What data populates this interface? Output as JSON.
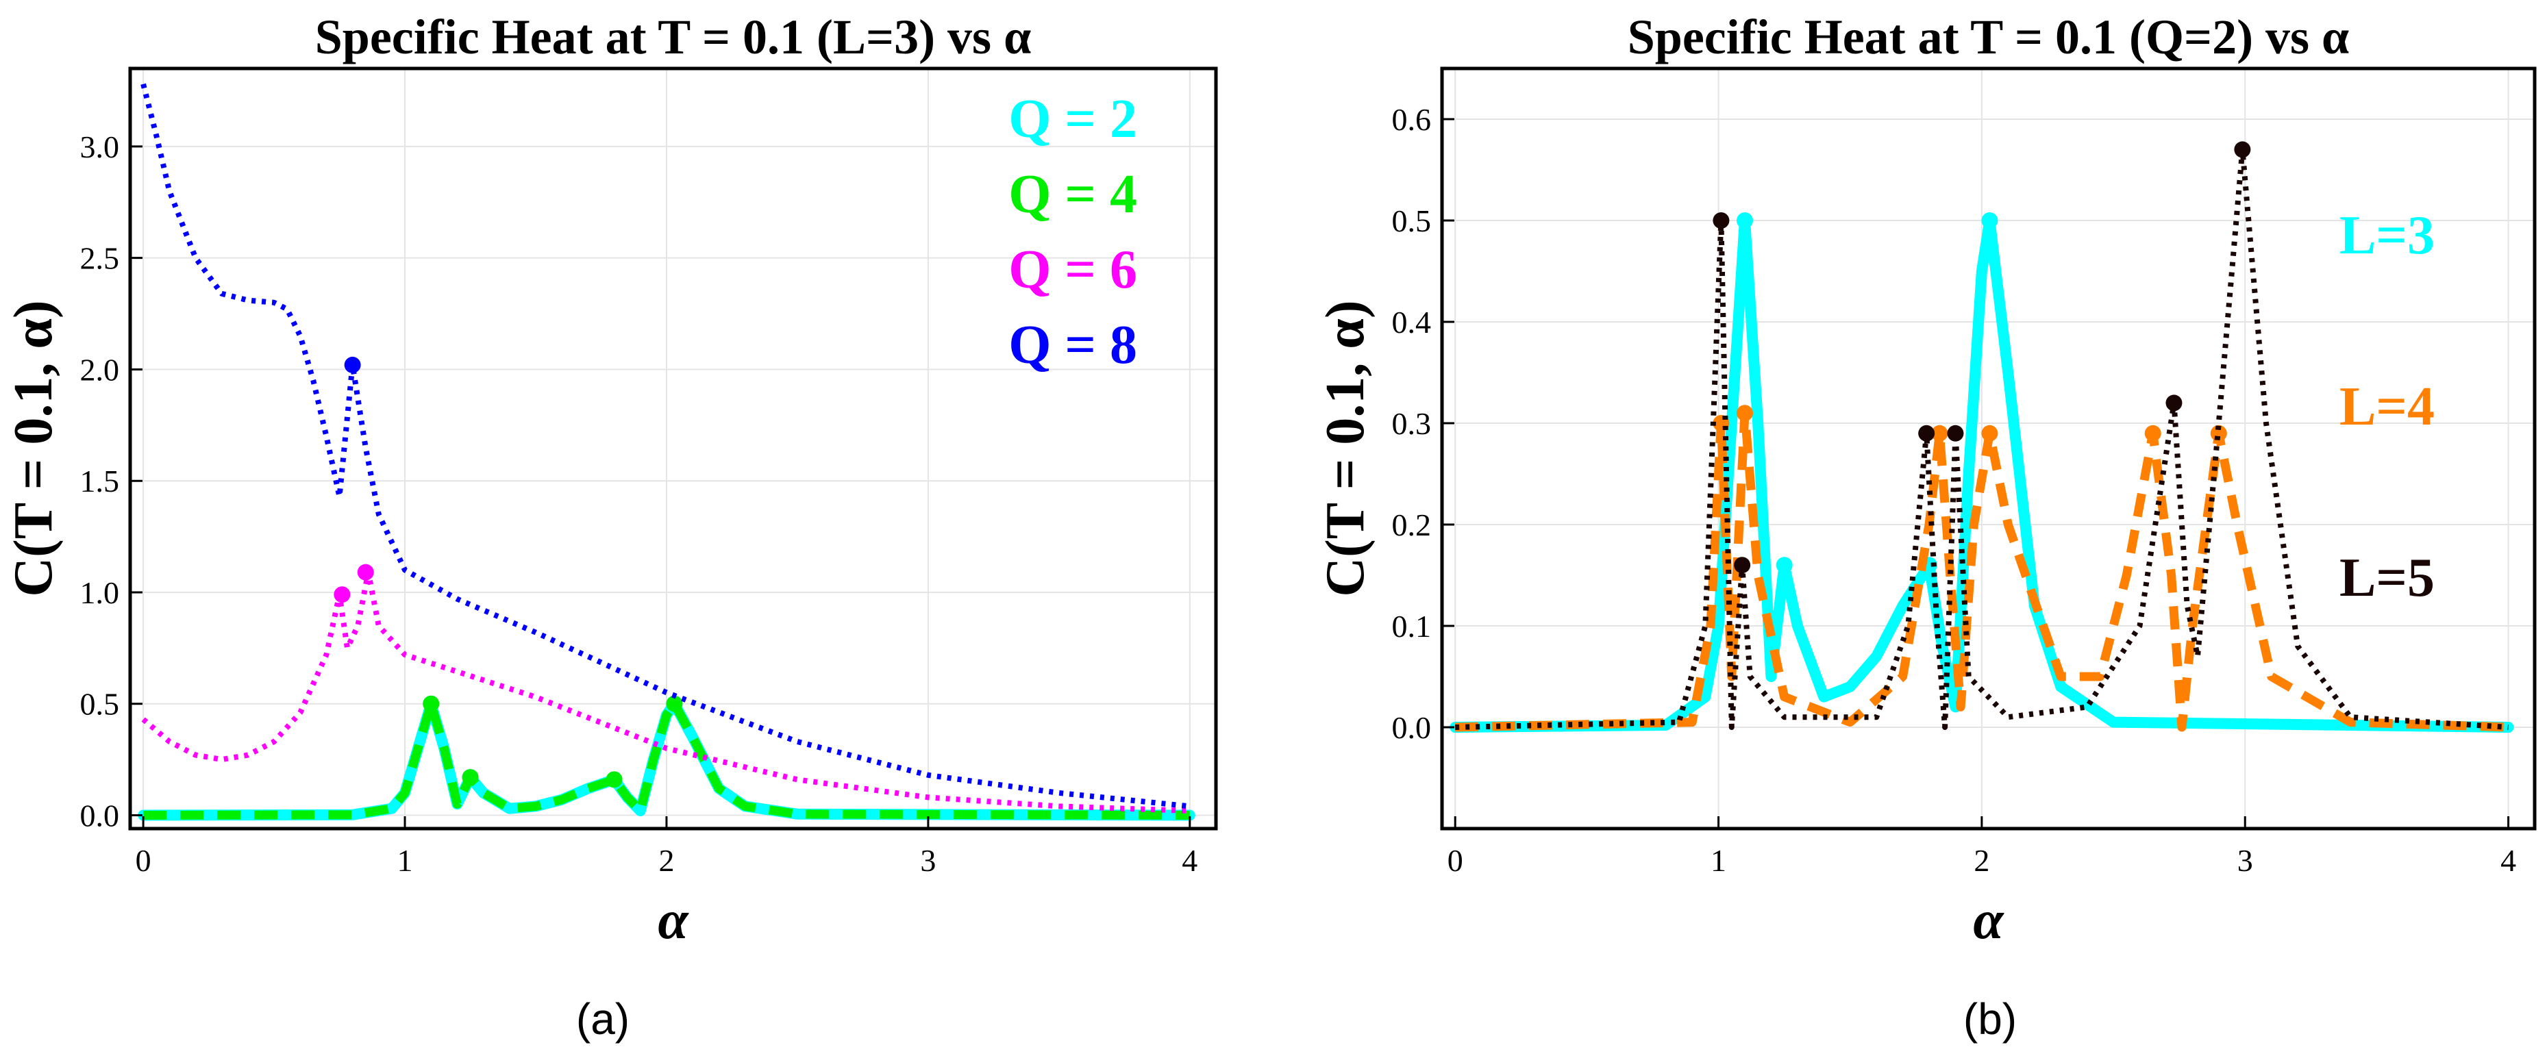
{
  "chart_data": [
    {
      "type": "line",
      "caption": "(a)",
      "title": "Specific Heat at T = 0.1 (L=3) vs α",
      "xlabel": "α",
      "ylabel": "C(T = 0.1, α)",
      "xlim": [
        -0.05,
        4.1
      ],
      "ylim": [
        -0.06,
        3.35
      ],
      "xticks": [
        {
          "v": 0,
          "label": "0"
        },
        {
          "v": 1,
          "label": "1"
        },
        {
          "v": 2,
          "label": "2"
        },
        {
          "v": 3,
          "label": "3"
        },
        {
          "v": 4,
          "label": "4"
        }
      ],
      "yticks": [
        {
          "v": 0.0,
          "label": "0.0"
        },
        {
          "v": 0.5,
          "label": "0.5"
        },
        {
          "v": 1.0,
          "label": "1.0"
        },
        {
          "v": 1.5,
          "label": "1.5"
        },
        {
          "v": 2.0,
          "label": "2.0"
        },
        {
          "v": 2.5,
          "label": "2.5"
        },
        {
          "v": 3.0,
          "label": "3.0"
        }
      ],
      "grid": true,
      "legend_position": "top-right",
      "series": [
        {
          "name": "Q = 2",
          "color": "#00ffff",
          "style": "solid",
          "points": [
            [
              0,
              0.0
            ],
            [
              0.8,
              0.002
            ],
            [
              0.95,
              0.03
            ],
            [
              1.0,
              0.1
            ],
            [
              1.05,
              0.3
            ],
            [
              1.1,
              0.5
            ],
            [
              1.15,
              0.3
            ],
            [
              1.2,
              0.05
            ],
            [
              1.25,
              0.17
            ],
            [
              1.3,
              0.1
            ],
            [
              1.4,
              0.03
            ],
            [
              1.5,
              0.04
            ],
            [
              1.6,
              0.07
            ],
            [
              1.7,
              0.12
            ],
            [
              1.8,
              0.16
            ],
            [
              1.85,
              0.08
            ],
            [
              1.9,
              0.02
            ],
            [
              1.95,
              0.25
            ],
            [
              2.0,
              0.45
            ],
            [
              2.03,
              0.5
            ],
            [
              2.1,
              0.35
            ],
            [
              2.2,
              0.12
            ],
            [
              2.3,
              0.04
            ],
            [
              2.5,
              0.005
            ],
            [
              4.0,
              0.0
            ]
          ],
          "markers": [
            [
              1.1,
              0.5
            ],
            [
              1.25,
              0.17
            ],
            [
              1.8,
              0.16
            ],
            [
              2.03,
              0.5
            ]
          ]
        },
        {
          "name": "Q = 4",
          "color": "#00ee00",
          "style": "dashed",
          "points": [
            [
              0,
              0.0
            ],
            [
              0.8,
              0.002
            ],
            [
              0.95,
              0.03
            ],
            [
              1.0,
              0.1
            ],
            [
              1.05,
              0.3
            ],
            [
              1.1,
              0.5
            ],
            [
              1.15,
              0.3
            ],
            [
              1.2,
              0.05
            ],
            [
              1.25,
              0.17
            ],
            [
              1.3,
              0.1
            ],
            [
              1.4,
              0.03
            ],
            [
              1.5,
              0.04
            ],
            [
              1.6,
              0.07
            ],
            [
              1.7,
              0.12
            ],
            [
              1.8,
              0.16
            ],
            [
              1.85,
              0.08
            ],
            [
              1.9,
              0.02
            ],
            [
              1.95,
              0.25
            ],
            [
              2.0,
              0.45
            ],
            [
              2.03,
              0.5
            ],
            [
              2.1,
              0.35
            ],
            [
              2.2,
              0.12
            ],
            [
              2.3,
              0.04
            ],
            [
              2.5,
              0.005
            ],
            [
              4.0,
              0.0
            ]
          ],
          "markers": [
            [
              1.1,
              0.5
            ],
            [
              1.25,
              0.17
            ],
            [
              1.8,
              0.16
            ],
            [
              2.03,
              0.5
            ]
          ]
        },
        {
          "name": "Q = 6",
          "color": "#ff00ff",
          "style": "dotted",
          "points": [
            [
              0,
              0.43
            ],
            [
              0.1,
              0.33
            ],
            [
              0.2,
              0.27
            ],
            [
              0.3,
              0.25
            ],
            [
              0.4,
              0.27
            ],
            [
              0.5,
              0.33
            ],
            [
              0.6,
              0.46
            ],
            [
              0.7,
              0.72
            ],
            [
              0.75,
              0.99
            ],
            [
              0.78,
              0.75
            ],
            [
              0.82,
              0.85
            ],
            [
              0.86,
              1.09
            ],
            [
              0.9,
              0.85
            ],
            [
              1.0,
              0.72
            ],
            [
              1.5,
              0.53
            ],
            [
              2.0,
              0.3
            ],
            [
              2.5,
              0.16
            ],
            [
              3.0,
              0.08
            ],
            [
              3.5,
              0.04
            ],
            [
              4.0,
              0.02
            ]
          ],
          "markers": [
            [
              0.76,
              0.99
            ],
            [
              0.85,
              1.09
            ]
          ]
        },
        {
          "name": "Q = 8",
          "color": "#0000ff",
          "style": "dotted",
          "points": [
            [
              0,
              3.28
            ],
            [
              0.05,
              3.05
            ],
            [
              0.1,
              2.8
            ],
            [
              0.2,
              2.5
            ],
            [
              0.3,
              2.34
            ],
            [
              0.4,
              2.31
            ],
            [
              0.5,
              2.3
            ],
            [
              0.55,
              2.27
            ],
            [
              0.6,
              2.15
            ],
            [
              0.65,
              1.95
            ],
            [
              0.7,
              1.7
            ],
            [
              0.75,
              1.43
            ],
            [
              0.8,
              2.02
            ],
            [
              0.85,
              1.65
            ],
            [
              0.9,
              1.35
            ],
            [
              1.0,
              1.1
            ],
            [
              1.2,
              0.97
            ],
            [
              1.5,
              0.82
            ],
            [
              2.0,
              0.55
            ],
            [
              2.5,
              0.33
            ],
            [
              3.0,
              0.18
            ],
            [
              3.5,
              0.1
            ],
            [
              4.0,
              0.04
            ]
          ],
          "markers": [
            [
              0.8,
              2.02
            ]
          ]
        }
      ]
    },
    {
      "type": "line",
      "caption": "(b)",
      "title": "Specific Heat at T = 0.1 (Q=2) vs α",
      "xlabel": "α",
      "ylabel": "C(T = 0.1, α)",
      "xlim": [
        -0.05,
        4.1
      ],
      "ylim": [
        -0.1,
        0.65
      ],
      "xticks": [
        {
          "v": 0,
          "label": "0"
        },
        {
          "v": 1,
          "label": "1"
        },
        {
          "v": 2,
          "label": "2"
        },
        {
          "v": 3,
          "label": "3"
        },
        {
          "v": 4,
          "label": "4"
        }
      ],
      "yticks": [
        {
          "v": 0.0,
          "label": "0.0"
        },
        {
          "v": 0.1,
          "label": "0.1"
        },
        {
          "v": 0.2,
          "label": "0.2"
        },
        {
          "v": 0.3,
          "label": "0.3"
        },
        {
          "v": 0.4,
          "label": "0.4"
        },
        {
          "v": 0.5,
          "label": "0.5"
        },
        {
          "v": 0.6,
          "label": "0.6"
        }
      ],
      "grid": true,
      "legend_position": "right",
      "series": [
        {
          "name": "L=3",
          "color": "#00ffff",
          "style": "solid",
          "points": [
            [
              0,
              0.0
            ],
            [
              0.8,
              0.002
            ],
            [
              0.95,
              0.03
            ],
            [
              1.0,
              0.1
            ],
            [
              1.05,
              0.3
            ],
            [
              1.1,
              0.5
            ],
            [
              1.15,
              0.3
            ],
            [
              1.2,
              0.05
            ],
            [
              1.25,
              0.16
            ],
            [
              1.3,
              0.1
            ],
            [
              1.4,
              0.03
            ],
            [
              1.5,
              0.04
            ],
            [
              1.6,
              0.07
            ],
            [
              1.7,
              0.12
            ],
            [
              1.8,
              0.16
            ],
            [
              1.85,
              0.08
            ],
            [
              1.9,
              0.02
            ],
            [
              1.95,
              0.25
            ],
            [
              2.0,
              0.45
            ],
            [
              2.03,
              0.5
            ],
            [
              2.1,
              0.35
            ],
            [
              2.2,
              0.12
            ],
            [
              2.3,
              0.04
            ],
            [
              2.5,
              0.005
            ],
            [
              4.0,
              0.0
            ]
          ],
          "markers": [
            [
              1.1,
              0.5
            ],
            [
              1.25,
              0.16
            ],
            [
              1.8,
              0.16
            ],
            [
              2.03,
              0.5
            ]
          ]
        },
        {
          "name": "L=4",
          "color": "#ff8000",
          "style": "dashed",
          "points": [
            [
              0,
              0.0
            ],
            [
              0.9,
              0.005
            ],
            [
              0.97,
              0.1
            ],
            [
              1.01,
              0.3
            ],
            [
              1.05,
              0.05
            ],
            [
              1.1,
              0.31
            ],
            [
              1.15,
              0.15
            ],
            [
              1.25,
              0.03
            ],
            [
              1.5,
              0.005
            ],
            [
              1.7,
              0.05
            ],
            [
              1.8,
              0.2
            ],
            [
              1.84,
              0.29
            ],
            [
              1.88,
              0.15
            ],
            [
              1.92,
              0.02
            ],
            [
              1.97,
              0.2
            ],
            [
              2.03,
              0.29
            ],
            [
              2.1,
              0.2
            ],
            [
              2.3,
              0.05
            ],
            [
              2.45,
              0.05
            ],
            [
              2.55,
              0.15
            ],
            [
              2.65,
              0.29
            ],
            [
              2.72,
              0.15
            ],
            [
              2.76,
              0.0
            ],
            [
              2.8,
              0.1
            ],
            [
              2.9,
              0.29
            ],
            [
              2.97,
              0.2
            ],
            [
              3.1,
              0.05
            ],
            [
              3.4,
              0.005
            ],
            [
              4.0,
              0.0
            ]
          ],
          "markers": [
            [
              1.01,
              0.3
            ],
            [
              1.1,
              0.31
            ],
            [
              1.84,
              0.29
            ],
            [
              2.03,
              0.29
            ],
            [
              2.65,
              0.29
            ],
            [
              2.9,
              0.29
            ]
          ]
        },
        {
          "name": "L=5",
          "color": "#1a0505",
          "style": "dotted",
          "points": [
            [
              0,
              0.0
            ],
            [
              0.85,
              0.005
            ],
            [
              0.95,
              0.1
            ],
            [
              1.01,
              0.5
            ],
            [
              1.05,
              0.0
            ],
            [
              1.09,
              0.16
            ],
            [
              1.12,
              0.05
            ],
            [
              1.25,
              0.01
            ],
            [
              1.6,
              0.01
            ],
            [
              1.72,
              0.1
            ],
            [
              1.79,
              0.29
            ],
            [
              1.83,
              0.1
            ],
            [
              1.86,
              0.0
            ],
            [
              1.9,
              0.29
            ],
            [
              1.95,
              0.05
            ],
            [
              2.1,
              0.01
            ],
            [
              2.4,
              0.02
            ],
            [
              2.6,
              0.1
            ],
            [
              2.73,
              0.32
            ],
            [
              2.78,
              0.12
            ],
            [
              2.82,
              0.07
            ],
            [
              2.9,
              0.3
            ],
            [
              2.99,
              0.57
            ],
            [
              3.08,
              0.3
            ],
            [
              3.2,
              0.08
            ],
            [
              3.4,
              0.01
            ],
            [
              4.0,
              0.0
            ]
          ],
          "markers": [
            [
              1.01,
              0.5
            ],
            [
              1.09,
              0.16
            ],
            [
              1.79,
              0.29
            ],
            [
              1.9,
              0.29
            ],
            [
              2.73,
              0.32
            ],
            [
              2.99,
              0.57
            ]
          ]
        }
      ]
    }
  ]
}
